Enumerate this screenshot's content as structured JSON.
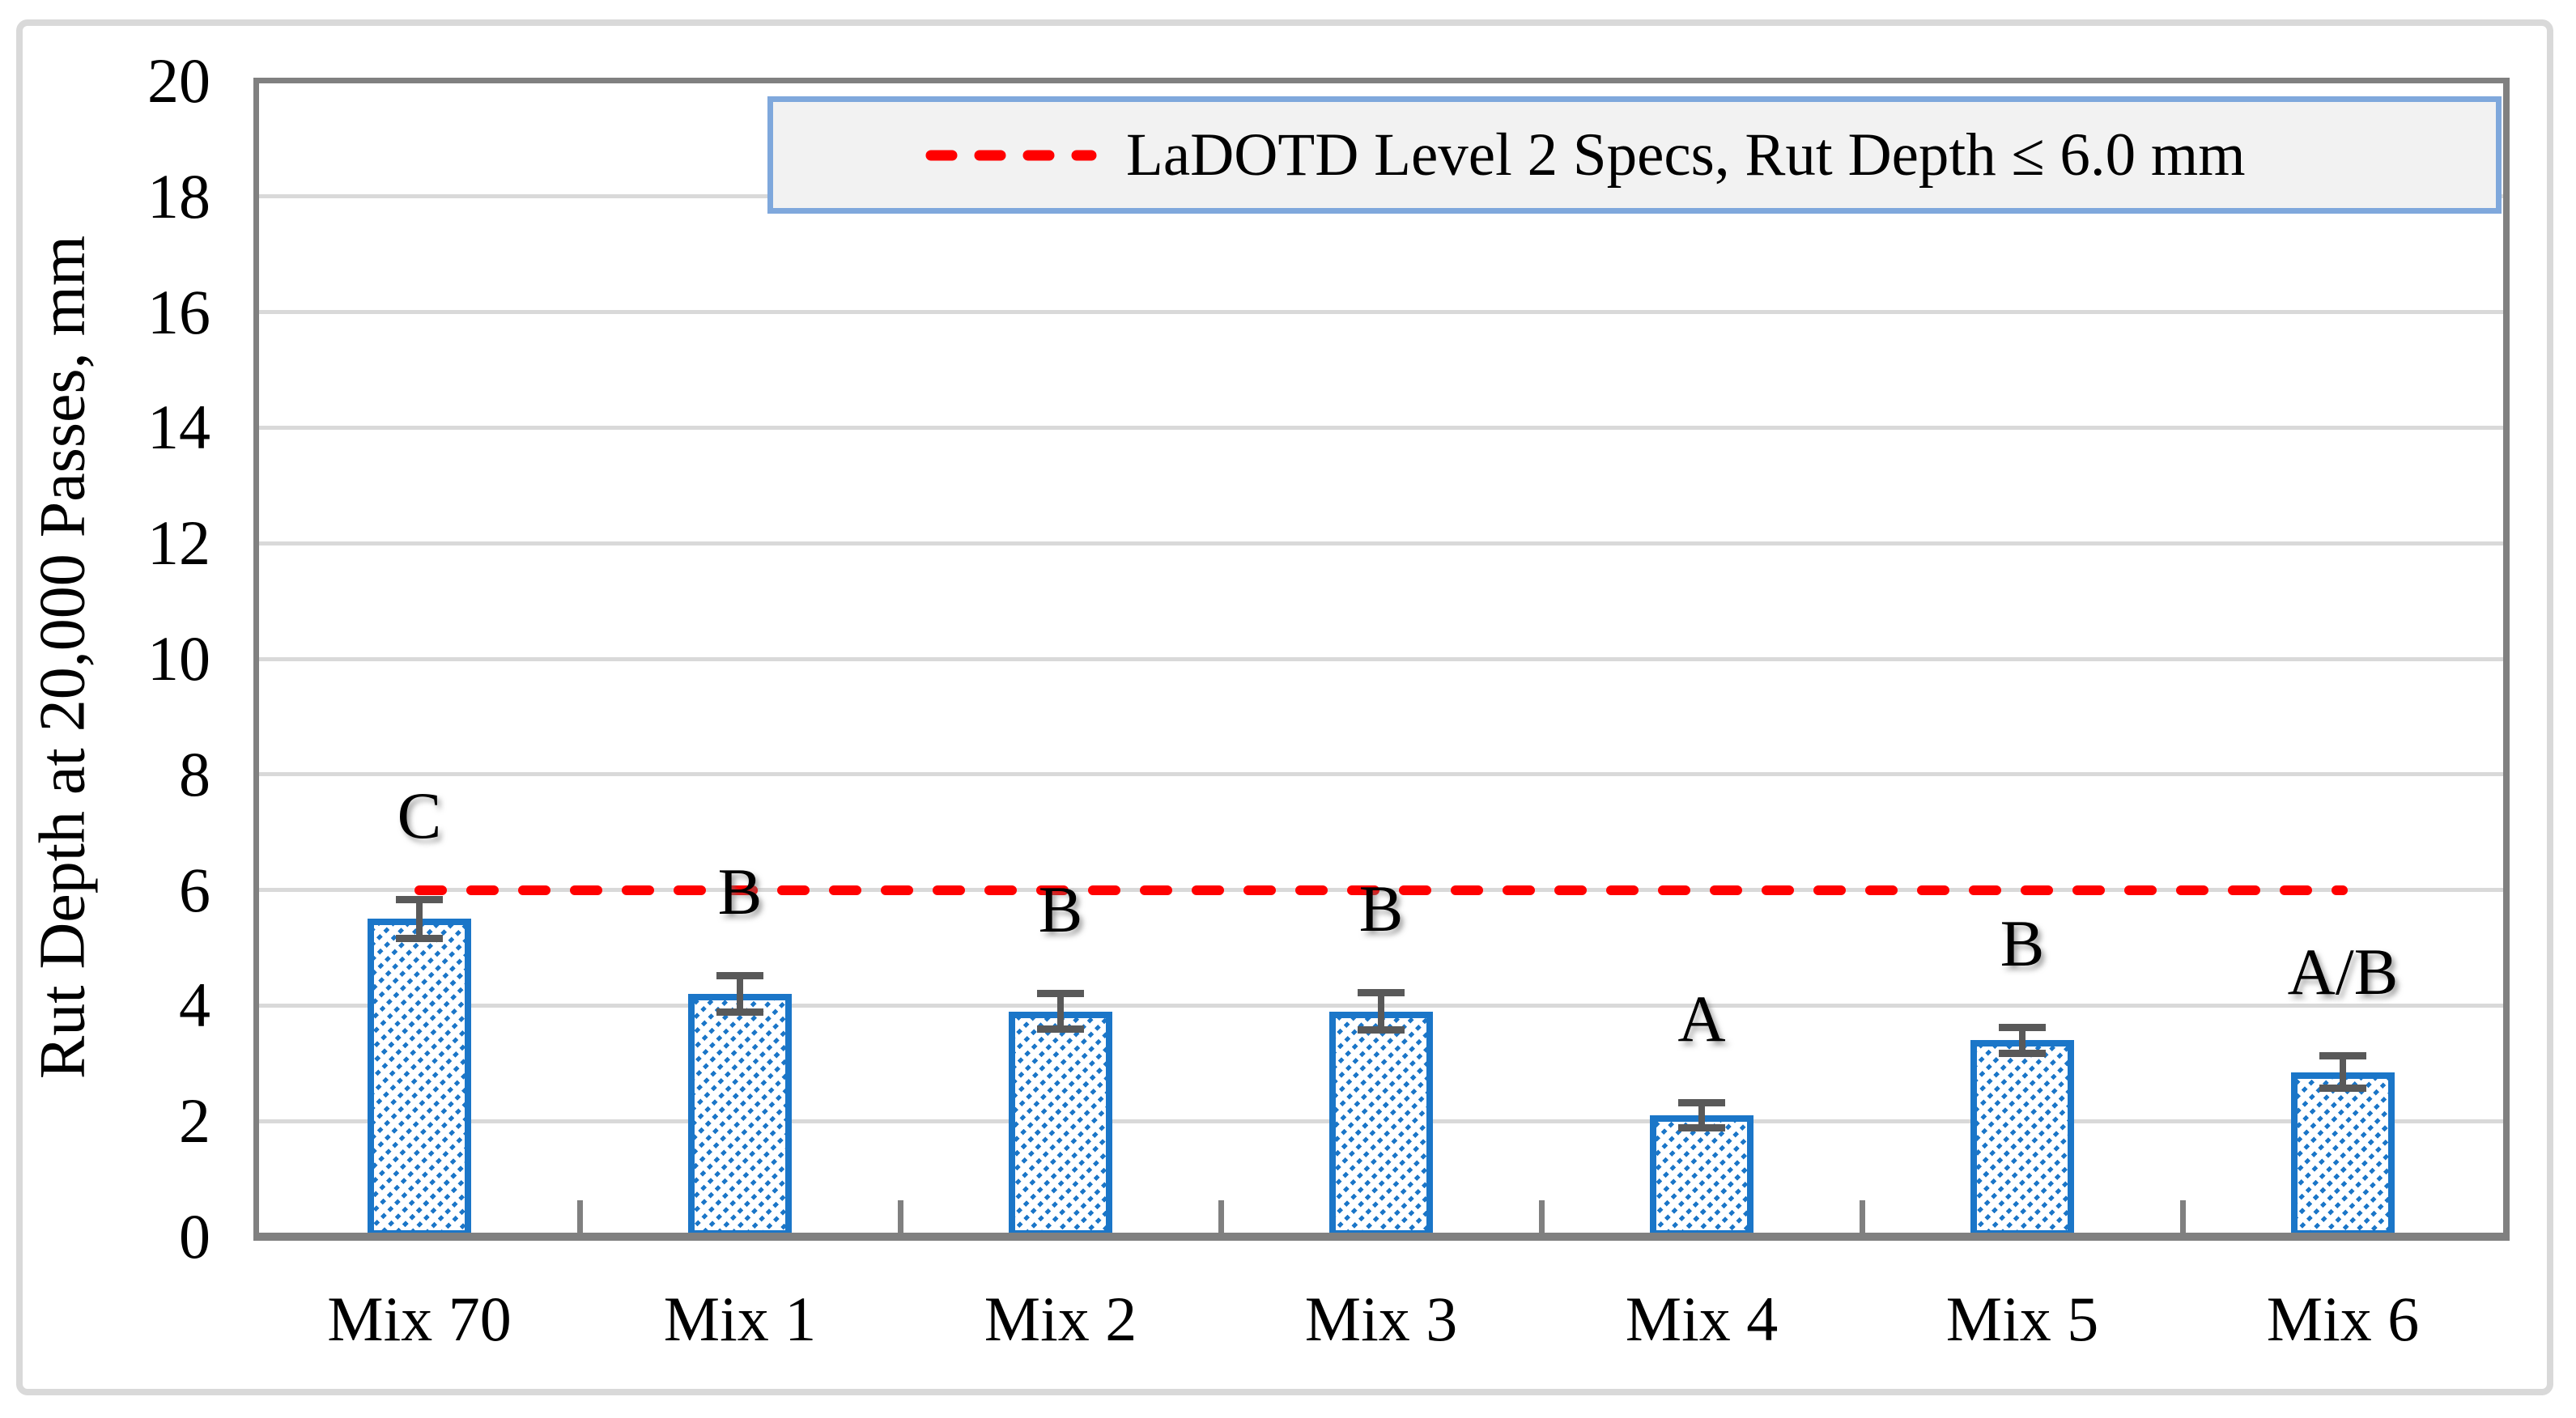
{
  "figure": {
    "background": "#ffffff",
    "outer_border_color": "#d9d9d9",
    "plot_border_color": "#808080",
    "gridline_color": "#d9d9d9"
  },
  "axes": {
    "y_title": "Rut Depth at 20,000 Passes, mm",
    "y_tick_labels": [
      "0",
      "2",
      "4",
      "6",
      "8",
      "10",
      "12",
      "14",
      "16",
      "18",
      "20"
    ],
    "x_tick_labels": [
      "Mix 70",
      "Mix 1",
      "Mix 2",
      "Mix 3",
      "Mix 4",
      "Mix 5",
      "Mix 6"
    ]
  },
  "legend": {
    "label": "LaDOTD Level 2 Specs, Rut Depth ≤ 6.0 mm",
    "line_color": "#ff0000",
    "box_fill": "#f2f2f2",
    "box_border": "#7fa8dc",
    "position": "top"
  },
  "chart_data": {
    "type": "bar",
    "title": "",
    "xlabel": "",
    "ylabel": "Rut Depth at 20,000 Passes, mm",
    "categories": [
      "Mix 70",
      "Mix 1",
      "Mix 2",
      "Mix 3",
      "Mix 4",
      "Mix 5",
      "Mix 6"
    ],
    "values": [
      5.5,
      4.2,
      3.9,
      3.9,
      2.1,
      3.4,
      2.85
    ],
    "error_bars": [
      0.4,
      0.38,
      0.37,
      0.39,
      0.28,
      0.29,
      0.34
    ],
    "significance_letters": [
      "C",
      "B",
      "B",
      "B",
      "A",
      "B",
      "A/B"
    ],
    "reference_line": {
      "value": 6.0,
      "label": "LaDOTD Level 2 Specs, Rut Depth ≤ 6.0 mm",
      "color": "#ff0000",
      "style": "dashed"
    },
    "ylim": [
      0,
      20
    ],
    "ytick_step": 2,
    "grid": true,
    "legend_position": "top",
    "bar_style": "diagonal-hatch",
    "bar_color": "#1b76c8",
    "error_color": "#595959"
  }
}
